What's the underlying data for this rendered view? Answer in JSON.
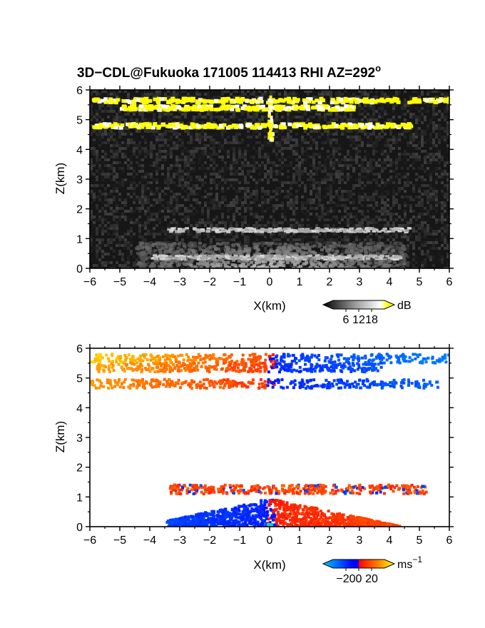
{
  "chart_data": [
    {
      "type": "heatmap",
      "title": "3D−CDL@Fukuoka 171005 114413 RHI AZ=292",
      "title_superscript": "o",
      "xlabel": "X(km)",
      "ylabel": "Z(km)",
      "xlim": [
        -6,
        6
      ],
      "ylim": [
        0,
        6
      ],
      "xticks": [
        "−6",
        "−5",
        "−4",
        "−3",
        "−2",
        "−1",
        "0",
        "1",
        "2",
        "3",
        "4",
        "5",
        "6"
      ],
      "yticks": [
        "0",
        "1",
        "2",
        "3",
        "4",
        "5",
        "6"
      ],
      "quantity": "signal intensity",
      "colorbar": {
        "label": "dB",
        "ticks": [
          "6",
          "12",
          "18"
        ],
        "colors": [
          "#000000",
          "#ffffff",
          "#ffff00"
        ]
      },
      "features": [
        {
          "name": "upper layer",
          "z_km": 5.7,
          "x_from_km": -6,
          "x_to_km": 6,
          "color": "#ffff00"
        },
        {
          "name": "middle layer",
          "z_km": 5.45,
          "x_from_km": -5,
          "x_to_km": 2.9,
          "color": "#ffff00"
        },
        {
          "name": "lower layer",
          "z_km": 4.85,
          "x_from_km": -6,
          "x_to_km": 4.7,
          "color": "#ffff00"
        },
        {
          "name": "boundary layer top",
          "z_km": 1.32,
          "x_from_km": -3.5,
          "x_to_km": 4.6,
          "color": "#bdbdbd"
        },
        {
          "name": "surface return",
          "z_km": 0.4,
          "x_from_km": -4,
          "x_to_km": 4.3,
          "color": "#cfcfcf"
        }
      ]
    },
    {
      "type": "heatmap",
      "title": "",
      "xlabel": "X(km)",
      "ylabel": "Z(km)",
      "xlim": [
        -6,
        6
      ],
      "ylim": [
        0,
        6
      ],
      "xticks": [
        "−6",
        "−5",
        "−4",
        "−3",
        "−2",
        "−1",
        "0",
        "1",
        "2",
        "3",
        "4",
        "5",
        "6"
      ],
      "yticks": [
        "0",
        "1",
        "2",
        "3",
        "4",
        "5",
        "6"
      ],
      "quantity": "Doppler velocity",
      "colorbar": {
        "label": "ms",
        "label_superscript": "−1",
        "ticks": [
          "−20",
          "0",
          "20"
        ],
        "colors": [
          "#00c8ff",
          "#0000ff",
          "#ff0000",
          "#ffff00"
        ]
      },
      "features": [
        {
          "name": "upper layer",
          "z_km": 5.7,
          "x_from_km": -6,
          "x_to_km": 6,
          "velocity_left": 18,
          "velocity_right": -12
        },
        {
          "name": "middle layer",
          "z_km": 5.4,
          "x_from_km": -5.8,
          "x_to_km": 3.7,
          "velocity_left": 15,
          "velocity_right": -10
        },
        {
          "name": "lower layer",
          "z_km": 4.85,
          "x_from_km": -6,
          "x_to_km": 5.6,
          "velocity_left": 13,
          "velocity_right": -9
        },
        {
          "name": "boundary layer top",
          "z_km": 1.3,
          "x_from_km": -3.4,
          "x_to_km": 5.2,
          "velocity_left": 5,
          "velocity_right": 6
        },
        {
          "name": "boundary layer",
          "z_km": 0.4,
          "x_from_km": -3.5,
          "x_to_km": 4.3,
          "velocity_left": -8,
          "velocity_right": 8
        }
      ]
    }
  ]
}
